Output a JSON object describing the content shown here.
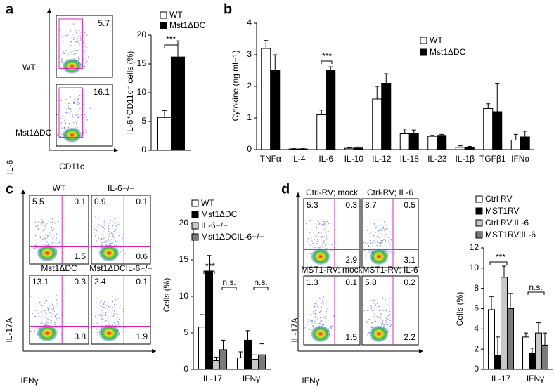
{
  "panel_labels": [
    "a",
    "b",
    "c",
    "d"
  ],
  "flow_a": {
    "y_label": "IL-6",
    "x_label": "CD11c",
    "plots": [
      {
        "label": "WT",
        "gate": 5.7
      },
      {
        "label": "Mst1ΔDC",
        "gate": 16.1
      }
    ]
  },
  "flow_c": {
    "y_label": "IL-17A",
    "x_label": "IFNγ",
    "plots": [
      {
        "title": "WT",
        "quadrants": [
          5.5,
          0.1,
          1.5
        ]
      },
      {
        "title": "IL-6−/−",
        "quadrants": [
          0.9,
          0.1,
          0.6
        ]
      },
      {
        "title": "Mst1ΔDC",
        "quadrants": [
          13.1,
          0.3,
          3.8
        ]
      },
      {
        "title": "Mst1ΔDCIL-6−/−",
        "quadrants": [
          2.4,
          0.1,
          1.9
        ]
      }
    ]
  },
  "flow_d": {
    "y_label": "IL-17A",
    "x_label": "IFNγ",
    "plots": [
      {
        "title": "Ctrl-RV; mock",
        "quadrants": [
          5.3,
          0.3,
          2.9
        ]
      },
      {
        "title": "Ctrl-RV; IL-6",
        "quadrants": [
          8.7,
          0.5,
          3.1
        ]
      },
      {
        "title": "MST1-RV; mock",
        "quadrants": [
          1.3,
          0.1,
          1.5
        ]
      },
      {
        "title": "MST1-RV; IL-6",
        "quadrants": [
          5.8,
          0.2,
          2.2
        ]
      }
    ]
  },
  "chart_data": [
    {
      "type": "bar",
      "y_label": "IL-6⁺CD11c⁺ cells (%)",
      "categories": [
        null
      ],
      "series": [
        {
          "name": "WT",
          "color": "#ffffff",
          "values": [
            5.7
          ],
          "errors": [
            1.2
          ]
        },
        {
          "name": "Mst1ΔDC",
          "color": "#000000",
          "values": [
            16.2
          ],
          "errors": [
            2.8
          ]
        }
      ],
      "ylim": [
        0,
        20
      ],
      "yticks": [
        0,
        5,
        10,
        15,
        20
      ],
      "annotations": [
        "***"
      ]
    },
    {
      "type": "bar",
      "y_label": "Cytokine (ng ml−1)",
      "categories": [
        "TNFα",
        "IL-4",
        "IL-6",
        "IL-10",
        "IL-12",
        "IL-18",
        "IL-23",
        "IL-1β",
        "TGFβ1",
        "IFNα"
      ],
      "series": [
        {
          "name": "WT",
          "color": "#ffffff",
          "values": [
            3.2,
            0.02,
            1.1,
            0.04,
            1.6,
            0.5,
            0.42,
            0.07,
            1.3,
            0.3
          ],
          "errors": [
            0.25,
            0.01,
            0.15,
            0.02,
            0.4,
            0.15,
            0.03,
            0.05,
            0.15,
            0.18
          ]
        },
        {
          "name": "Mst1ΔDC",
          "color": "#000000",
          "values": [
            2.5,
            0.02,
            2.5,
            0.05,
            2.1,
            0.5,
            0.45,
            0.07,
            1.2,
            0.4
          ],
          "errors": [
            0.5,
            0.01,
            0.12,
            0.03,
            0.3,
            0.12,
            0.03,
            0.03,
            0.9,
            0.18
          ]
        }
      ],
      "ylim": [
        0,
        4
      ],
      "yticks": [
        0,
        1,
        2,
        3,
        4
      ],
      "annotations": [
        "***"
      ]
    },
    {
      "type": "bar",
      "y_label": "Cells (%)",
      "categories": [
        "IL-17",
        "IFNγ"
      ],
      "series": [
        {
          "name": "WT",
          "color": "#ffffff",
          "values": [
            5.8,
            1.6
          ],
          "errors": [
            1.7,
            0.8
          ]
        },
        {
          "name": "Mst1ΔDC",
          "color": "#000000",
          "values": [
            13.4,
            4.0
          ],
          "errors": [
            2.2,
            1.3
          ]
        },
        {
          "name": "IL-6−/−",
          "color": "#c8c8c8",
          "values": [
            1.2,
            1.4
          ],
          "errors": [
            0.5,
            0.6
          ]
        },
        {
          "name": "Mst1ΔDCIL-6−/−",
          "color": "#7a7a7a",
          "values": [
            2.7,
            2.0
          ],
          "errors": [
            1.3,
            1.5
          ]
        }
      ],
      "ylim": [
        0,
        20
      ],
      "yticks": [
        0,
        5,
        10,
        15,
        20
      ],
      "annotations": [
        "***",
        "n.s.",
        "n.s."
      ]
    },
    {
      "type": "bar",
      "y_label": "Cells (%)",
      "categories": [
        "IL-17",
        "IFNγ"
      ],
      "series": [
        {
          "name": "Ctrl RV",
          "color": "#ffffff",
          "values": [
            5.9,
            3.2
          ],
          "errors": [
            1.3,
            0.4
          ]
        },
        {
          "name": "MST1RV",
          "color": "#000000",
          "values": [
            1.4,
            1.6
          ],
          "errors": [
            1.8,
            0.5
          ]
        },
        {
          "name": "Ctrl RV;IL-6",
          "color": "#c8c8c8",
          "values": [
            9.1,
            3.6
          ],
          "errors": [
            1.1,
            1.0
          ]
        },
        {
          "name": "MST1RV;IL-6",
          "color": "#7a7a7a",
          "values": [
            6.0,
            2.4
          ],
          "errors": [
            1.5,
            1.2
          ]
        }
      ],
      "ylim": [
        0,
        12
      ],
      "yticks": [
        0,
        2,
        4,
        6,
        8,
        10,
        12
      ],
      "annotations": [
        "***",
        "n.s."
      ]
    }
  ]
}
